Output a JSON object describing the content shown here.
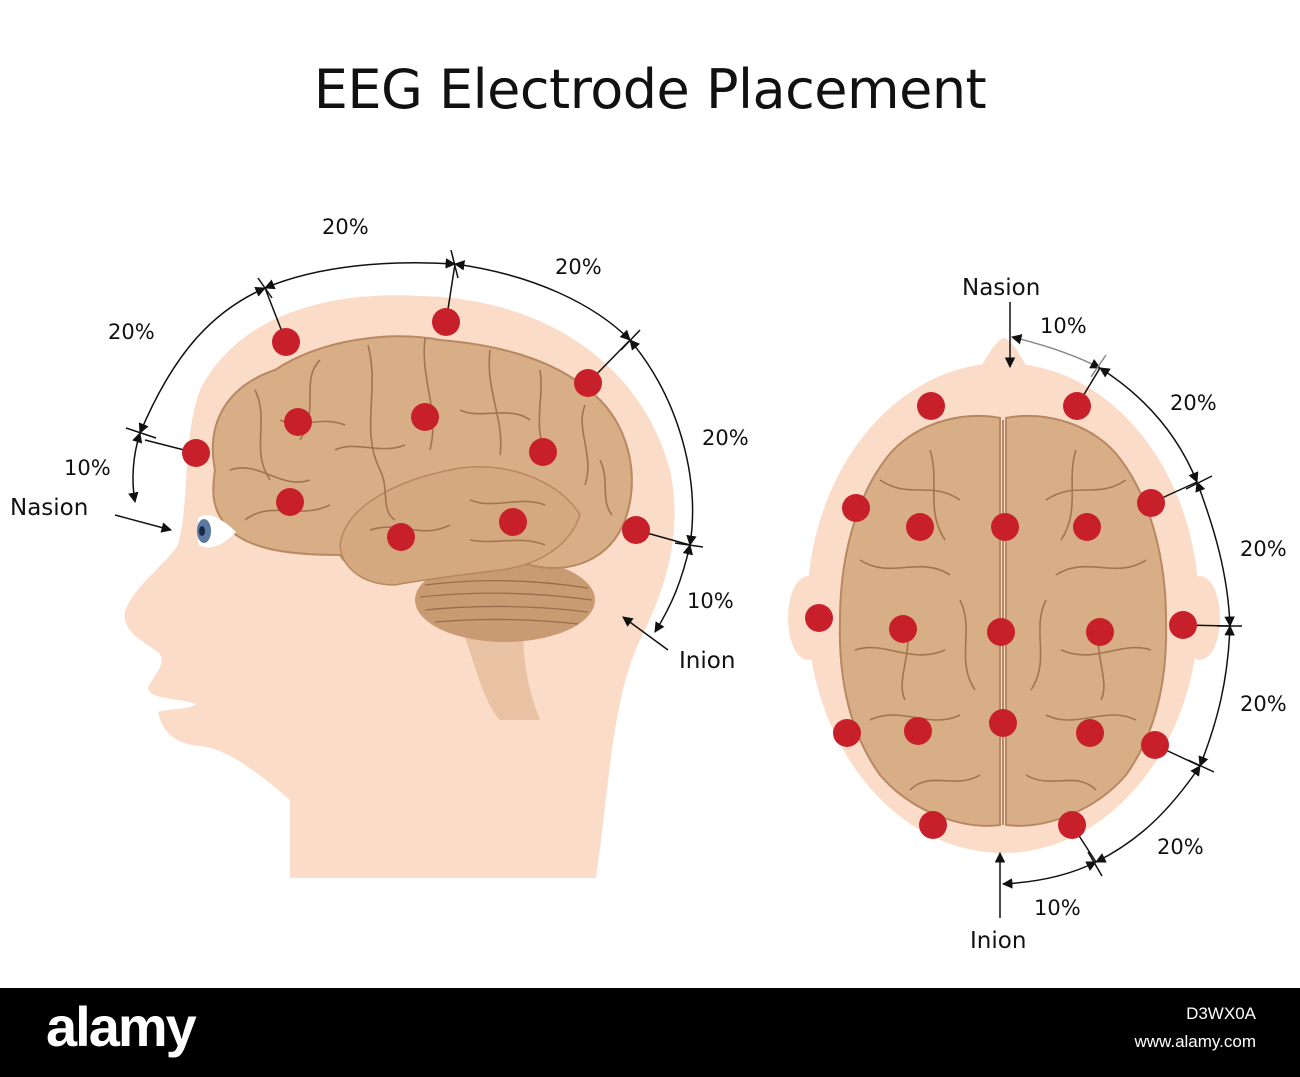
{
  "title": "EEG Electrode Placement",
  "colors": {
    "skin": "#fbdcc8",
    "brain": "#d8ae86",
    "brain_line": "#a27450",
    "electrode": "#c8202a",
    "arrow": "#111111"
  },
  "side_view": {
    "labels": {
      "nasion": "Nasion",
      "inion": "Inion"
    },
    "percentages": [
      "20%",
      "20%",
      "20%",
      "20%",
      "10%",
      "10%"
    ]
  },
  "top_view": {
    "labels": {
      "nasion": "Nasion",
      "inion": "Inion"
    },
    "percentages": [
      "10%",
      "20%",
      "20%",
      "20%",
      "20%",
      "10%"
    ]
  },
  "footer": {
    "brand": "alamy",
    "image_id": "D3WX0A",
    "site": "www.alamy.com"
  }
}
